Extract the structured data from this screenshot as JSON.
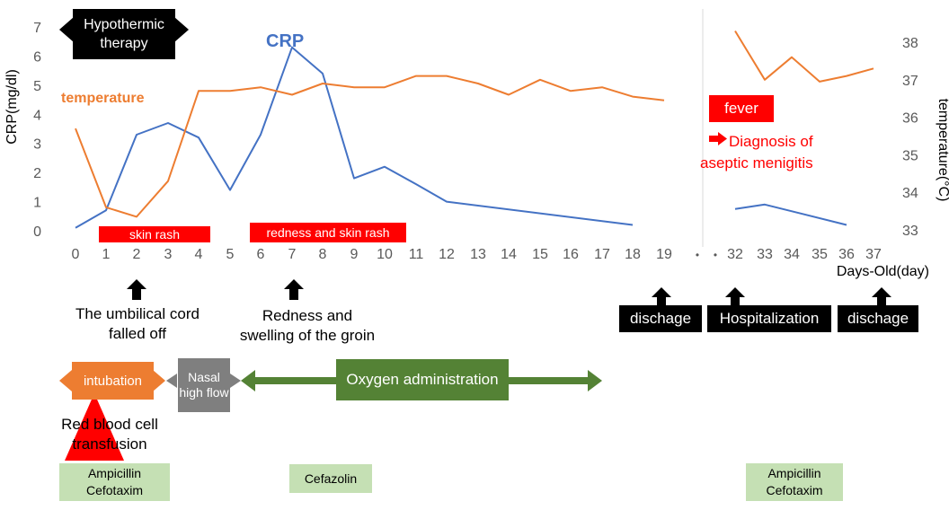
{
  "chart_data": {
    "type": "line",
    "categories": [
      "0",
      "1",
      "2",
      "3",
      "4",
      "5",
      "6",
      "7",
      "8",
      "9",
      "10",
      "11",
      "12",
      "13",
      "14",
      "15",
      "16",
      "17",
      "18",
      "19",
      "•",
      "•",
      "32",
      "33",
      "34",
      "35",
      "36",
      "37"
    ],
    "xlabel": "Days-Old(day)",
    "left_axis": {
      "label": "CRP(mg/dl)",
      "ylim": [
        0,
        7
      ],
      "ticks": [
        "0",
        "1",
        "2",
        "3",
        "4",
        "5",
        "6",
        "7"
      ]
    },
    "right_axis": {
      "label": "temperature(°C)",
      "ylim": [
        33,
        38
      ],
      "ticks": [
        "33",
        "34",
        "35",
        "36",
        "37",
        "38"
      ]
    },
    "series": [
      {
        "name": "CRP",
        "axis": "left",
        "color": "#4472c4",
        "segments": [
          {
            "x": [
              0,
              1,
              2,
              3,
              4,
              5,
              6,
              7,
              8,
              9,
              10,
              11,
              12,
              18
            ],
            "y": [
              0.1,
              0.7,
              3.3,
              3.7,
              3.2,
              1.4,
              3.3,
              6.3,
              5.4,
              1.8,
              2.2,
              1.6,
              1.0,
              0.2
            ]
          },
          {
            "x": [
              32,
              33,
              36
            ],
            "y": [
              0.75,
              0.9,
              0.2
            ]
          }
        ]
      },
      {
        "name": "temperature",
        "axis": "right",
        "color": "#ed7d31",
        "segments": [
          {
            "x": [
              0,
              1,
              2,
              3,
              4,
              5,
              6,
              7,
              8,
              9,
              10,
              11,
              12,
              13,
              14,
              15,
              16,
              17,
              18,
              19
            ],
            "y": [
              35.7,
              33.6,
              33.35,
              34.3,
              36.7,
              36.7,
              36.8,
              36.6,
              36.9,
              36.8,
              36.8,
              37.1,
              37.1,
              36.9,
              36.6,
              37.0,
              36.7,
              36.8,
              36.55,
              36.45
            ]
          },
          {
            "x": [
              32,
              33,
              34,
              35,
              36,
              37
            ],
            "y": [
              38.3,
              37.0,
              37.6,
              36.95,
              37.1,
              37.3
            ]
          }
        ]
      }
    ]
  },
  "annotations": {
    "hypothermic_therapy": "Hypothermic therapy",
    "crp_label": "CRP",
    "temperature_label": "temperature",
    "skin_rash": "skin rash",
    "redness_skin_rash": "redness and skin rash",
    "fever": "fever",
    "diagnosis": "Diagnosis of aseptic menigitis",
    "umbilical": "The umbilical cord falled off",
    "redness_groin": "Redness  and swelling of the groin",
    "discharge1": "dischage",
    "hospitalization": "Hospitalization",
    "discharge2": "dischage",
    "intubation": "intubation",
    "nasal": "Nasal high flow",
    "oxygen": "Oxygen administration",
    "rbc": "Red blood cell transfusion",
    "abx1": "Ampicillin Cefotaxim",
    "abx2": "Cefazolin",
    "abx3": "Ampicillin Cefotaxim"
  },
  "colors": {
    "crp": "#4472c4",
    "temperature": "#ed7d31",
    "red": "#ff0000",
    "intubation": "#ed7d31",
    "nasal": "#7f7f7f",
    "oxygen": "#548235",
    "antibiotic": "#c5e0b4"
  }
}
